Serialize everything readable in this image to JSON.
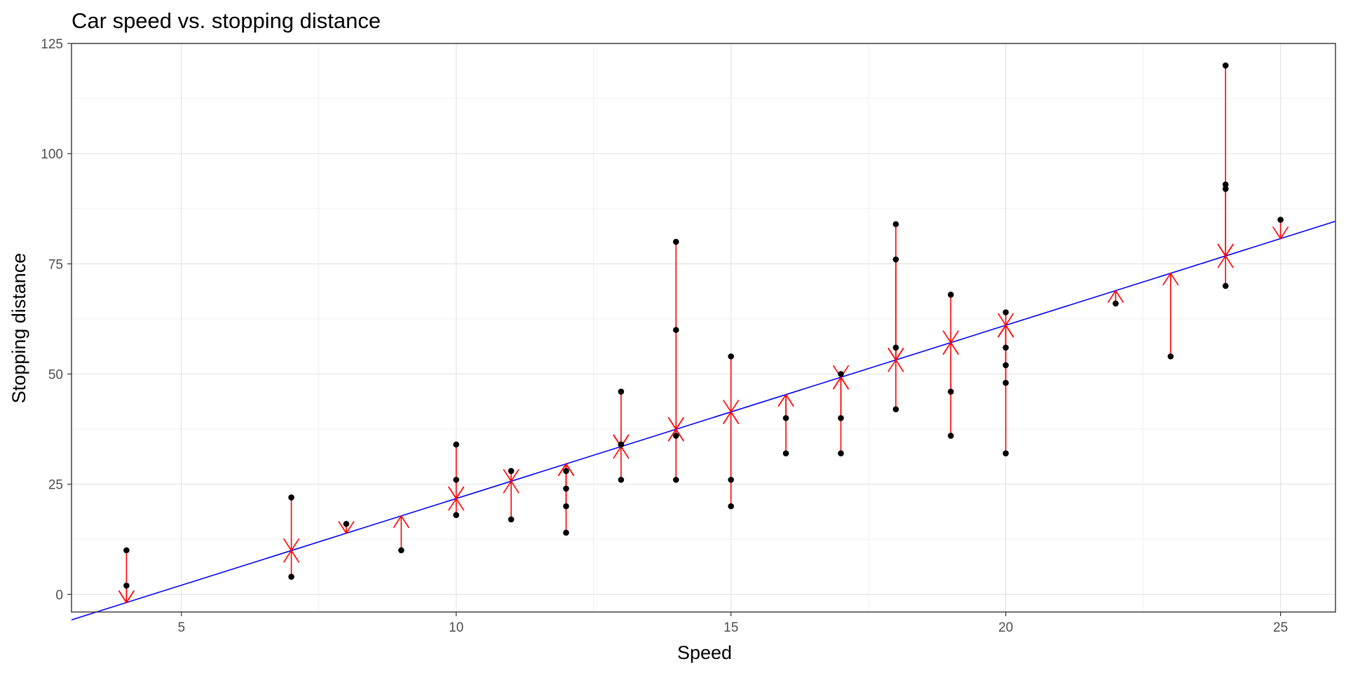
{
  "chart_data": {
    "type": "scatter",
    "title": "Car speed vs. stopping distance",
    "xlabel": "Speed",
    "ylabel": "Stopping distance",
    "xlim": [
      3,
      26
    ],
    "ylim": [
      -4,
      125
    ],
    "x_ticks": [
      5,
      10,
      15,
      20,
      25
    ],
    "y_ticks": [
      0,
      25,
      50,
      75,
      100,
      125
    ],
    "x_tick_labels": [
      "5",
      "10",
      "15",
      "20",
      "25"
    ],
    "y_tick_labels": [
      "0",
      "25",
      "50",
      "75",
      "100",
      "125"
    ],
    "grid": true,
    "legend": "none",
    "fit_line": {
      "intercept": -17.579,
      "slope": 3.932,
      "color": "#0000ff"
    },
    "residual_color": "#ff0000",
    "point_color": "#000000",
    "points": [
      {
        "x": 4,
        "y": 2
      },
      {
        "x": 4,
        "y": 10
      },
      {
        "x": 7,
        "y": 4
      },
      {
        "x": 7,
        "y": 22
      },
      {
        "x": 8,
        "y": 16
      },
      {
        "x": 9,
        "y": 10
      },
      {
        "x": 10,
        "y": 18
      },
      {
        "x": 10,
        "y": 26
      },
      {
        "x": 10,
        "y": 34
      },
      {
        "x": 11,
        "y": 17
      },
      {
        "x": 11,
        "y": 28
      },
      {
        "x": 12,
        "y": 14
      },
      {
        "x": 12,
        "y": 20
      },
      {
        "x": 12,
        "y": 24
      },
      {
        "x": 12,
        "y": 28
      },
      {
        "x": 13,
        "y": 26
      },
      {
        "x": 13,
        "y": 34
      },
      {
        "x": 13,
        "y": 34
      },
      {
        "x": 13,
        "y": 46
      },
      {
        "x": 14,
        "y": 26
      },
      {
        "x": 14,
        "y": 36
      },
      {
        "x": 14,
        "y": 60
      },
      {
        "x": 14,
        "y": 80
      },
      {
        "x": 15,
        "y": 20
      },
      {
        "x": 15,
        "y": 26
      },
      {
        "x": 15,
        "y": 54
      },
      {
        "x": 16,
        "y": 32
      },
      {
        "x": 16,
        "y": 40
      },
      {
        "x": 17,
        "y": 32
      },
      {
        "x": 17,
        "y": 40
      },
      {
        "x": 17,
        "y": 50
      },
      {
        "x": 18,
        "y": 42
      },
      {
        "x": 18,
        "y": 56
      },
      {
        "x": 18,
        "y": 76
      },
      {
        "x": 18,
        "y": 84
      },
      {
        "x": 19,
        "y": 36
      },
      {
        "x": 19,
        "y": 46
      },
      {
        "x": 19,
        "y": 68
      },
      {
        "x": 20,
        "y": 32
      },
      {
        "x": 20,
        "y": 48
      },
      {
        "x": 20,
        "y": 52
      },
      {
        "x": 20,
        "y": 56
      },
      {
        "x": 20,
        "y": 64
      },
      {
        "x": 22,
        "y": 66
      },
      {
        "x": 23,
        "y": 54
      },
      {
        "x": 24,
        "y": 70
      },
      {
        "x": 24,
        "y": 92
      },
      {
        "x": 24,
        "y": 93
      },
      {
        "x": 24,
        "y": 120
      },
      {
        "x": 25,
        "y": 85
      }
    ]
  }
}
